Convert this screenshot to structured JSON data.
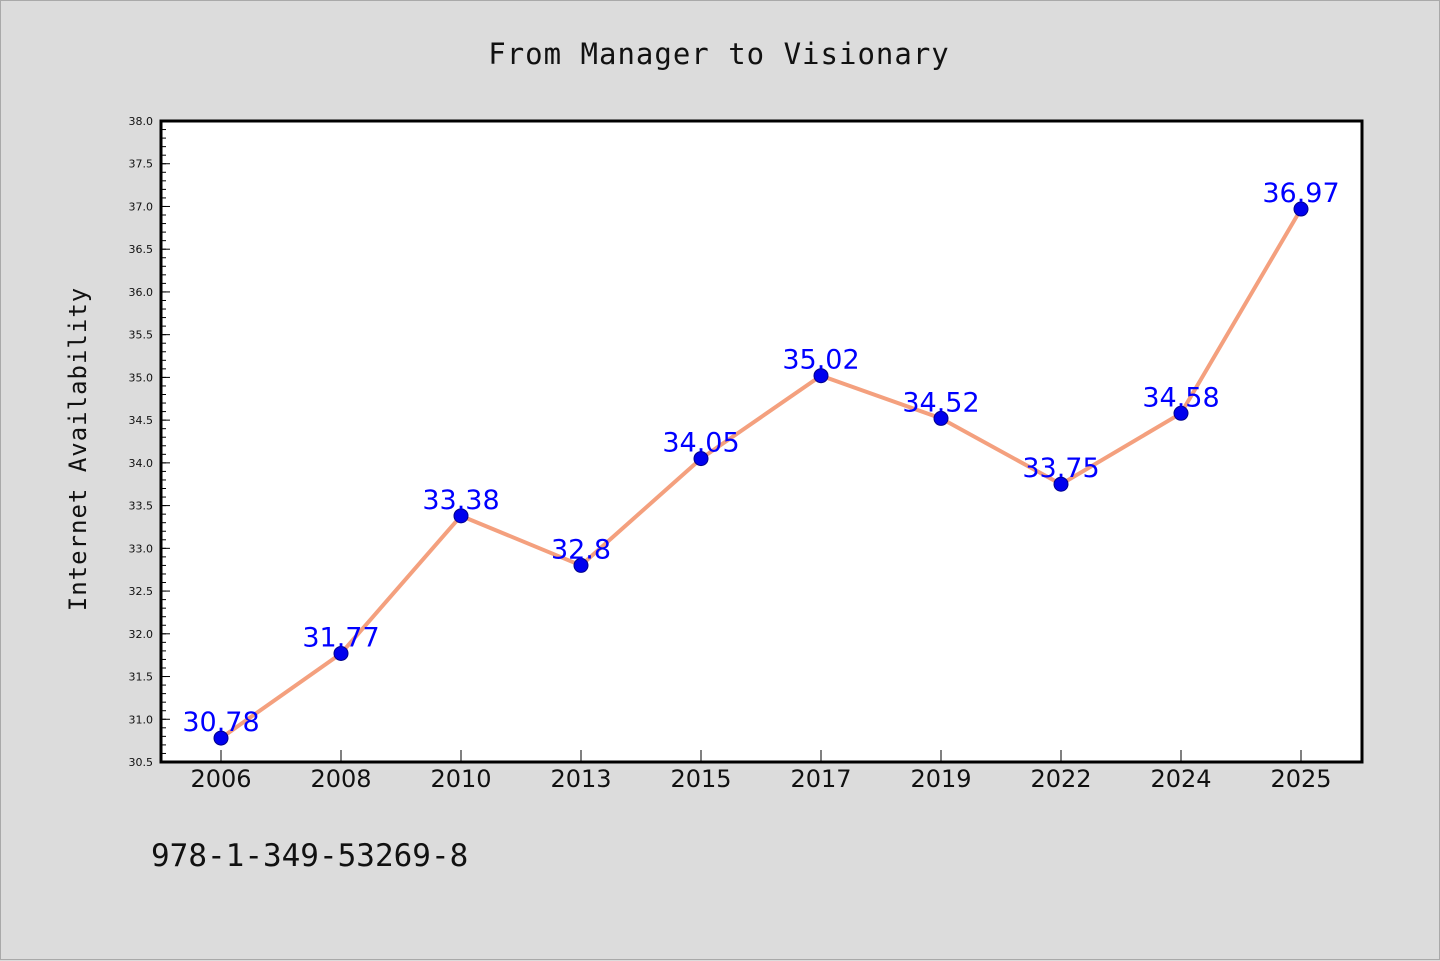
{
  "chart_data": {
    "type": "line",
    "title": "From Manager to Visionary",
    "xlabel": "",
    "ylabel": "Internet Availability",
    "categories": [
      "2006",
      "2008",
      "2010",
      "2013",
      "2015",
      "2017",
      "2019",
      "2022",
      "2024",
      "2025"
    ],
    "series": [
      {
        "values": [
          30.78,
          31.77,
          33.38,
          32.8,
          34.05,
          35.02,
          34.52,
          33.75,
          34.58,
          36.97
        ],
        "data_labels": [
          "30.78",
          "31.77",
          "33.38",
          "32.8",
          "34.05",
          "35.02",
          "34.52",
          "33.75",
          "34.58",
          "36.97"
        ],
        "line_color": "#f4a07e",
        "marker_color": "#0000ee",
        "label_color": "#0000ff"
      }
    ],
    "ylim": [
      30.5,
      38.0
    ],
    "yticks": [
      "30.5",
      "31.0",
      "31.5",
      "32.0",
      "32.5",
      "33.0",
      "33.5",
      "34.0",
      "34.5",
      "35.0",
      "35.5",
      "36.0",
      "36.5",
      "37.0",
      "37.5",
      "38.0"
    ],
    "grid": false,
    "legend": "none",
    "background": "#dcdcdc",
    "plot_background": "#ffffff"
  },
  "footnote": "978-1-349-53269-8"
}
